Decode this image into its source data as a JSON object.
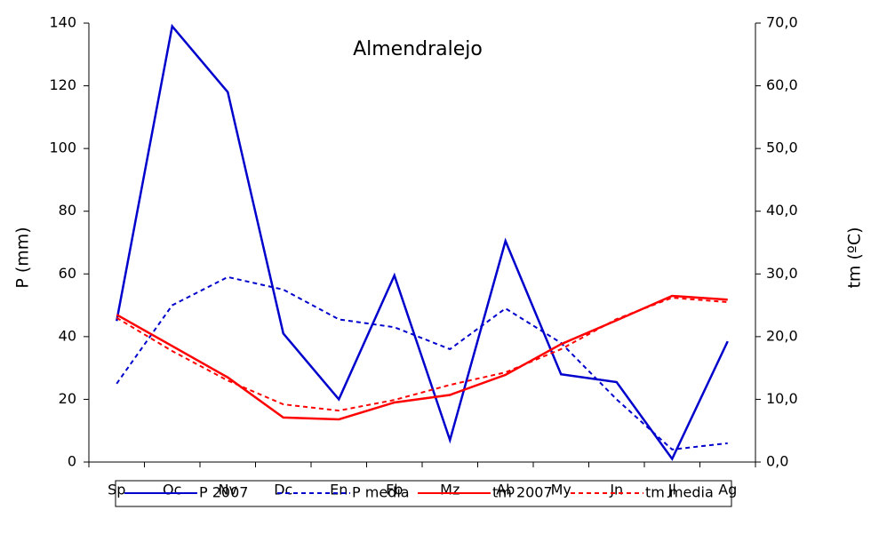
{
  "chart_data": {
    "type": "line",
    "title": "Almendralejo",
    "y_label": "P (mm)",
    "y2_label": "tm (ºC)",
    "categories": [
      "Sp",
      "Oc",
      "Nv",
      "Dc",
      "En",
      "Fb",
      "Mz",
      "Ab",
      "My",
      "Jn",
      "Jl",
      "Ag"
    ],
    "series": [
      {
        "name": "P 2007",
        "color": "#0000cc",
        "dash": "solid",
        "values": [
          45,
          139,
          118,
          41,
          20,
          59.5,
          7,
          70.5,
          28,
          25.5,
          1,
          38.5
        ]
      },
      {
        "name": "P media",
        "color": "#0000cc",
        "dash": "dashed",
        "values": [
          25,
          50,
          59,
          55,
          45.5,
          43,
          36,
          49,
          38,
          20,
          4,
          6
        ]
      },
      {
        "name": "tm 2007",
        "color": "#ff0000",
        "dash": "solid",
        "axis": "y2",
        "values": [
          23.5,
          18.5,
          13.5,
          7.1,
          6.8,
          9.5,
          10.7,
          13.9,
          18.8,
          22.6,
          26.5,
          25.9
        ]
      },
      {
        "name": "tm media",
        "color": "#ff0000",
        "dash": "dashed",
        "axis": "y2",
        "values": [
          23,
          17.7,
          13,
          9.2,
          8.2,
          9.9,
          12.3,
          14.3,
          18,
          22.8,
          26.2,
          25.5
        ]
      }
    ],
    "ylim": [
      0,
      140
    ],
    "yticks": [
      0,
      20,
      40,
      60,
      80,
      100,
      120,
      140
    ],
    "y2lim": [
      0,
      70
    ],
    "y2ticks": [
      {
        "value": 0,
        "label": "0,0"
      },
      {
        "value": 10,
        "label": "10,0"
      },
      {
        "value": 20,
        "label": "20,0"
      },
      {
        "value": 30,
        "label": "30,0"
      },
      {
        "value": 40,
        "label": "40,0"
      },
      {
        "value": 50,
        "label": "50,0"
      },
      {
        "value": 60,
        "label": "60,0"
      },
      {
        "value": 70,
        "label": "70,0"
      }
    ],
    "legend": "bottom"
  }
}
